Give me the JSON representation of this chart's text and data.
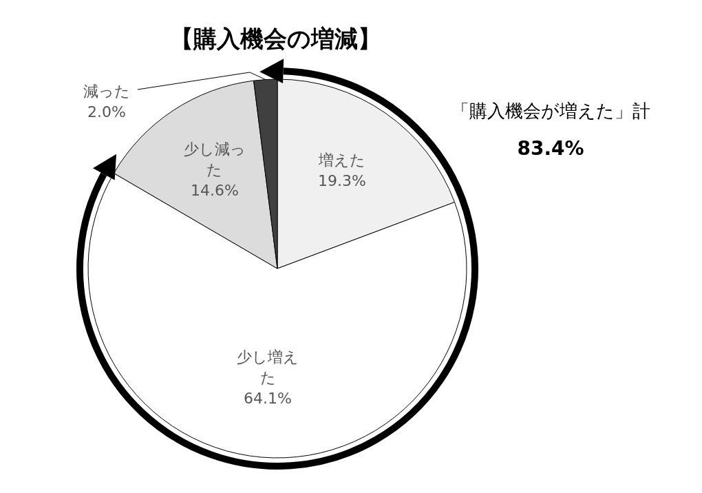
{
  "chart_data": {
    "type": "pie",
    "title": "【購入機会の増減】",
    "categories": [
      "増えた",
      "少し増えた",
      "少し減った",
      "減った"
    ],
    "values": [
      19.3,
      64.1,
      14.6,
      2.0
    ],
    "value_labels": [
      "19.3%",
      "64.1%",
      "14.6%",
      "2.0%"
    ],
    "colors": [
      "#f0f0f0",
      "#ffffff",
      "#dcdcdc",
      "#404040"
    ],
    "annotations": [
      "「購入機会が増えた」計",
      "83.4%"
    ]
  }
}
